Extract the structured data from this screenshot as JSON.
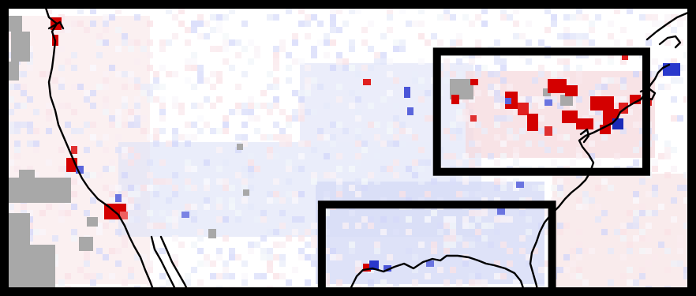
{
  "map": {
    "projection": "plate-carree",
    "extent_lon": [
      -125,
      -60
    ],
    "extent_lat": [
      24,
      50
    ],
    "colors": {
      "background": "#ffffff",
      "positive_anomaly": "#e00000",
      "negative_anomaly": "#2030d0",
      "missing_data": "#a8a8a8",
      "coastline": "#000000",
      "frame": "#000000"
    },
    "regions": [
      {
        "name": "northeast",
        "lon": [
          -84,
          -64
        ],
        "lat": [
          35,
          46
        ]
      },
      {
        "name": "gulf",
        "lon": [
          -95,
          -73
        ],
        "lat": [
          24,
          32
        ]
      }
    ]
  }
}
